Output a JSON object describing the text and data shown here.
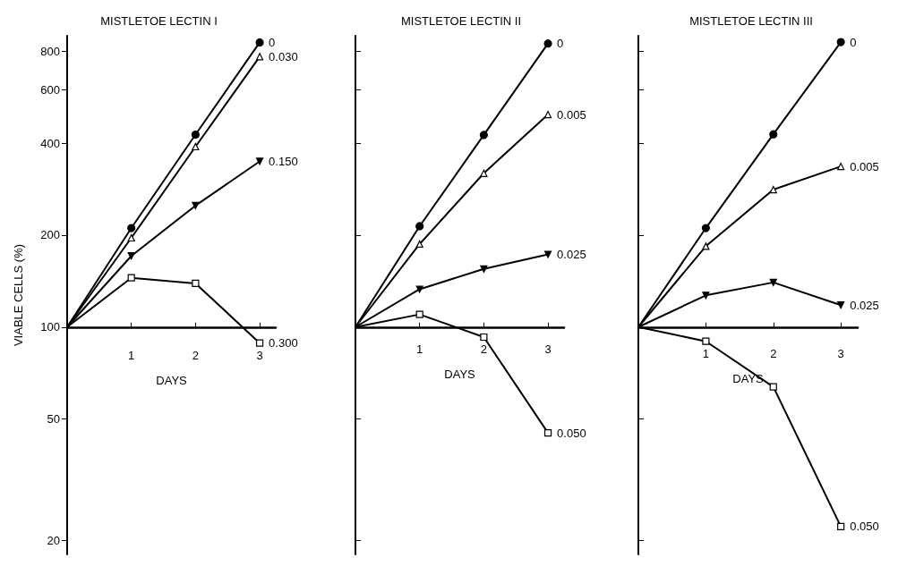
{
  "chart_data": [
    {
      "type": "line",
      "title": "MISTLETOE LECTIN I",
      "xlabel": "DAYS",
      "ylabel": "VIABLE CELLS (%)",
      "x": [
        0,
        1,
        2,
        3
      ],
      "xlim": [
        0,
        3.25
      ],
      "xticks": [
        1,
        2,
        3
      ],
      "ylim": [
        18,
        900
      ],
      "yticks": [
        20,
        50,
        100,
        200,
        400,
        600,
        800
      ],
      "log": "y",
      "grid": false,
      "series": [
        {
          "name": "0",
          "color": "#000000",
          "marker": "circle",
          "values": [
            100,
            211,
            427,
            856
          ]
        },
        {
          "name": "0.030",
          "color": "#000000",
          "marker": "triangle",
          "values": [
            100,
            196,
            390,
            769
          ]
        },
        {
          "name": "0.150",
          "color": "#000000",
          "marker": "triangle-down",
          "values": [
            100,
            171,
            250,
            349
          ]
        },
        {
          "name": "0.300",
          "color": "#000000",
          "marker": "square",
          "values": [
            100,
            145,
            139,
            88.6
          ]
        }
      ]
    },
    {
      "type": "line",
      "title": "MISTLETOE LECTIN II",
      "xlabel": "DAYS",
      "x": [
        0,
        1,
        2,
        3
      ],
      "xlim": [
        0,
        3.25
      ],
      "xticks": [
        1,
        2,
        3
      ],
      "ylim": [
        18,
        900
      ],
      "yticks": [
        20,
        50,
        100,
        200,
        400,
        600,
        800
      ],
      "tick_labels": "x",
      "log": "y",
      "grid": false,
      "series": [
        {
          "name": "0",
          "color": "#000000",
          "marker": "circle",
          "values": [
            100,
            214,
            426,
            849
          ]
        },
        {
          "name": "0.005",
          "color": "#000000",
          "marker": "triangle",
          "values": [
            100,
            187,
            319,
            497
          ]
        },
        {
          "name": "0.025",
          "color": "#000000",
          "marker": "triangle-down",
          "values": [
            100,
            133,
            155,
            173
          ]
        },
        {
          "name": "0.050",
          "color": "#000000",
          "marker": "square",
          "values": [
            100,
            110,
            92.7,
            45
          ]
        }
      ]
    },
    {
      "type": "line",
      "title": "MISTLETOE LECTIN III",
      "xlabel": "DAYS",
      "x": [
        0,
        1,
        2,
        3
      ],
      "xlim": [
        0,
        3.25
      ],
      "xticks": [
        1,
        2,
        3
      ],
      "ylim": [
        18,
        900
      ],
      "yticks": [
        20,
        50,
        100,
        200,
        400,
        600,
        800
      ],
      "tick_labels": "x",
      "log": "y",
      "grid": false,
      "series": [
        {
          "name": "0",
          "color": "#000000",
          "marker": "circle",
          "values": [
            100,
            211,
            428,
            858
          ]
        },
        {
          "name": "0.005",
          "color": "#000000",
          "marker": "triangle",
          "values": [
            100,
            184,
            282,
            336
          ]
        },
        {
          "name": "0.025",
          "color": "#000000",
          "marker": "triangle-down",
          "values": [
            100,
            127,
            140,
            118
          ]
        },
        {
          "name": "0.050",
          "color": "#000000",
          "marker": "square",
          "values": [
            100,
            89.8,
            63.7,
            22.2
          ]
        }
      ]
    }
  ]
}
